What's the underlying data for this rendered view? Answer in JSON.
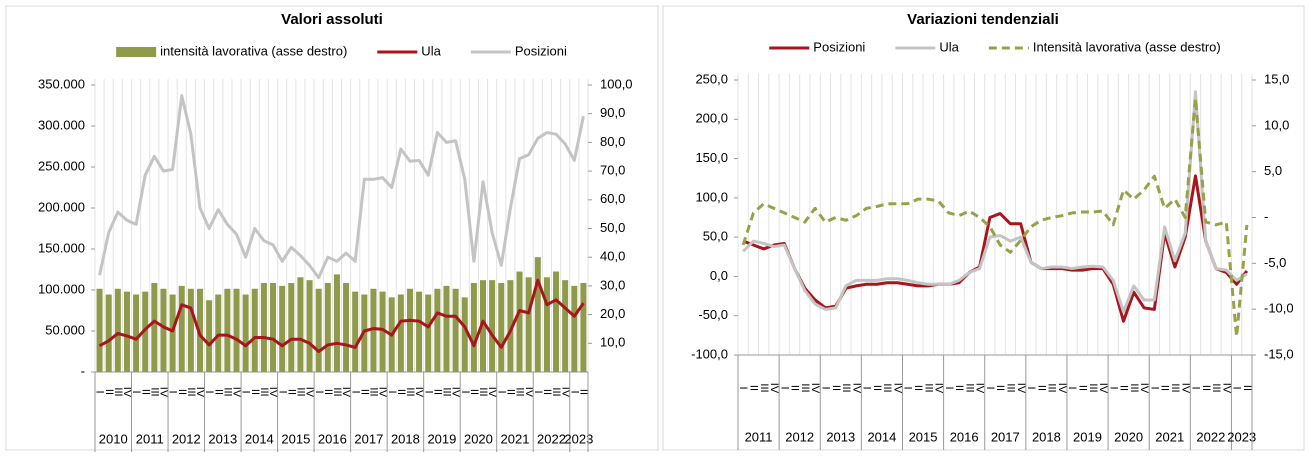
{
  "chart_data": [
    {
      "type": "combo",
      "title": "Valori assoluti",
      "categories": [
        "I",
        "II",
        "III",
        "IV",
        "I",
        "II",
        "III",
        "IV",
        "I",
        "II",
        "III",
        "IV",
        "I",
        "II",
        "III",
        "IV",
        "I",
        "II",
        "III",
        "IV",
        "I",
        "II",
        "III",
        "IV",
        "I",
        "II",
        "III",
        "IV",
        "I",
        "II",
        "III",
        "IV",
        "I",
        "II",
        "III",
        "IV",
        "I",
        "II",
        "III",
        "IV",
        "I",
        "II",
        "III",
        "IV",
        "I",
        "II",
        "III",
        "IV",
        "I",
        "II",
        "III",
        "IV",
        "I",
        "II"
      ],
      "years": [
        "2010",
        "2011",
        "2012",
        "2013",
        "2014",
        "2015",
        "2016",
        "2017",
        "2018",
        "2019",
        "2020",
        "2021",
        "2022",
        "2023"
      ],
      "series": [
        {
          "name": "intensità lavorativa (asse destro)",
          "type": "bar",
          "axis": "y2",
          "color": "#8f9a4a",
          "values": [
            29,
            27,
            29,
            28,
            27,
            28,
            31,
            29,
            27,
            30,
            29,
            29,
            25,
            27,
            29,
            29,
            27,
            29,
            31,
            31,
            30,
            31,
            33,
            32,
            29,
            31,
            34,
            31,
            28,
            27,
            29,
            28,
            26,
            27,
            29,
            28,
            27,
            29,
            30,
            29,
            26,
            31,
            32,
            32,
            31,
            32,
            35,
            33,
            40,
            33,
            35,
            32,
            30,
            31
          ]
        },
        {
          "name": "Ula",
          "type": "line",
          "color": "#a8151c",
          "values": [
            32000,
            38000,
            47000,
            44000,
            40000,
            52000,
            62000,
            55000,
            50000,
            82000,
            78000,
            45000,
            33000,
            45000,
            45000,
            40000,
            32000,
            42000,
            42000,
            40000,
            32000,
            40000,
            40000,
            35000,
            25000,
            33000,
            35000,
            33000,
            30000,
            50000,
            53000,
            52000,
            45000,
            62000,
            63000,
            62000,
            55000,
            72000,
            68000,
            68000,
            55000,
            32000,
            62000,
            45000,
            30000,
            50000,
            75000,
            72000,
            112000,
            82000,
            88000,
            78000,
            68000,
            84000
          ]
        },
        {
          "name": "Posizioni",
          "type": "line",
          "color": "#c4c4c4",
          "values": [
            118000,
            170000,
            195000,
            185000,
            180000,
            240000,
            263000,
            245000,
            247000,
            337000,
            290000,
            200000,
            175000,
            198000,
            180000,
            168000,
            140000,
            175000,
            160000,
            155000,
            135000,
            152000,
            142000,
            130000,
            115000,
            140000,
            135000,
            145000,
            135000,
            235000,
            235000,
            237000,
            225000,
            272000,
            257000,
            258000,
            240000,
            292000,
            280000,
            282000,
            235000,
            135000,
            232000,
            170000,
            130000,
            200000,
            260000,
            265000,
            285000,
            292000,
            290000,
            278000,
            258000,
            312000
          ]
        }
      ],
      "ylim": [
        0,
        350000
      ],
      "yticks": [
        {
          "value": 0,
          "label": "-"
        },
        {
          "value": 50000,
          "label": "50.000"
        },
        {
          "value": 100000,
          "label": "100.000"
        },
        {
          "value": 150000,
          "label": "150.000"
        },
        {
          "value": 200000,
          "label": "200.000"
        },
        {
          "value": 250000,
          "label": "250.000"
        },
        {
          "value": 300000,
          "label": "300.000"
        },
        {
          "value": 350000,
          "label": "350.000"
        }
      ],
      "y2lim": [
        0,
        100
      ],
      "y2ticks": [
        {
          "value": 10,
          "label": "10,0"
        },
        {
          "value": 20,
          "label": "20,0"
        },
        {
          "value": 30,
          "label": "30,0"
        },
        {
          "value": 40,
          "label": "40,0"
        },
        {
          "value": 50,
          "label": "50,0"
        },
        {
          "value": 60,
          "label": "60,0"
        },
        {
          "value": 70,
          "label": "70,0"
        },
        {
          "value": 80,
          "label": "80,0"
        },
        {
          "value": 90,
          "label": "90,0"
        },
        {
          "value": 100,
          "label": "100,0"
        }
      ],
      "grid": "x"
    },
    {
      "type": "line",
      "title": "Variazioni tendenziali",
      "categories": [
        "I",
        "II",
        "III",
        "IV",
        "I",
        "II",
        "III",
        "IV",
        "I",
        "II",
        "III",
        "IV",
        "I",
        "II",
        "III",
        "IV",
        "I",
        "II",
        "III",
        "IV",
        "I",
        "II",
        "III",
        "IV",
        "I",
        "II",
        "III",
        "IV",
        "I",
        "II",
        "III",
        "IV",
        "I",
        "II",
        "III",
        "IV",
        "I",
        "II",
        "III",
        "IV",
        "I",
        "II",
        "III",
        "IV",
        "I",
        "II",
        "III",
        "IV",
        "I",
        "II"
      ],
      "years": [
        "2011",
        "2012",
        "2013",
        "2014",
        "2015",
        "2016",
        "2017",
        "2018",
        "2019",
        "2020",
        "2021",
        "2022",
        "2023"
      ],
      "series": [
        {
          "name": "Posizioni",
          "type": "line",
          "color": "#a8151c",
          "values": [
            45,
            40,
            35,
            40,
            42,
            10,
            -15,
            -30,
            -40,
            -38,
            -15,
            -12,
            -10,
            -10,
            -8,
            -8,
            -10,
            -12,
            -12,
            -10,
            -10,
            -8,
            5,
            12,
            75,
            80,
            67,
            67,
            18,
            10,
            10,
            10,
            8,
            8,
            10,
            10,
            -10,
            -57,
            -20,
            -40,
            -42,
            55,
            12,
            50,
            128,
            45,
            10,
            5,
            -10,
            7
          ]
        },
        {
          "name": "Ula",
          "type": "line",
          "color": "#c4c4c4",
          "values": [
            32,
            45,
            42,
            38,
            40,
            10,
            -18,
            -35,
            -42,
            -40,
            -12,
            -5,
            -5,
            -5,
            -3,
            -3,
            -5,
            -8,
            -10,
            -10,
            -10,
            -5,
            5,
            10,
            50,
            52,
            45,
            50,
            18,
            10,
            12,
            12,
            10,
            12,
            13,
            12,
            -5,
            -45,
            -12,
            -30,
            -30,
            63,
            20,
            55,
            235,
            45,
            10,
            8,
            -5,
            3
          ]
        },
        {
          "name": "Intensità lavorativa (asse destro)",
          "type": "line",
          "axis": "y2",
          "dash": true,
          "color": "#98a14a",
          "values": [
            -3,
            0.5,
            1.5,
            1,
            0.5,
            0,
            -0.5,
            1,
            -0.5,
            0,
            -0.3,
            0.2,
            1,
            1.2,
            1.5,
            1.5,
            1.5,
            2,
            2,
            1.8,
            0.5,
            0.2,
            0.7,
            0,
            -1,
            -3,
            -3.8,
            -2.5,
            -1,
            -0.3,
            0,
            0.2,
            0.5,
            0.6,
            0.6,
            0.7,
            -0.8,
            3,
            2,
            3,
            4.5,
            1,
            2,
            0,
            13,
            -0.5,
            -0.8,
            -0.5,
            -13,
            -0.8
          ]
        }
      ],
      "ylim": [
        -100,
        250
      ],
      "yticks": [
        {
          "value": -100,
          "label": "-100,0"
        },
        {
          "value": -50,
          "label": "-50,0"
        },
        {
          "value": 0,
          "label": "0,0"
        },
        {
          "value": 50,
          "label": "50,0"
        },
        {
          "value": 100,
          "label": "100,0"
        },
        {
          "value": 150,
          "label": "150,0"
        },
        {
          "value": 200,
          "label": "200,0"
        },
        {
          "value": 250,
          "label": "250,0"
        }
      ],
      "y2lim": [
        -15,
        15
      ],
      "y2ticks": [
        {
          "value": -15,
          "label": "-15,0"
        },
        {
          "value": -10,
          "label": "-10,0"
        },
        {
          "value": -5,
          "label": "-5,0"
        },
        {
          "value": 0,
          "label": "-"
        },
        {
          "value": 5,
          "label": "5,0"
        },
        {
          "value": 10,
          "label": "10,0"
        },
        {
          "value": 15,
          "label": "15,0"
        }
      ],
      "grid": "x"
    }
  ]
}
